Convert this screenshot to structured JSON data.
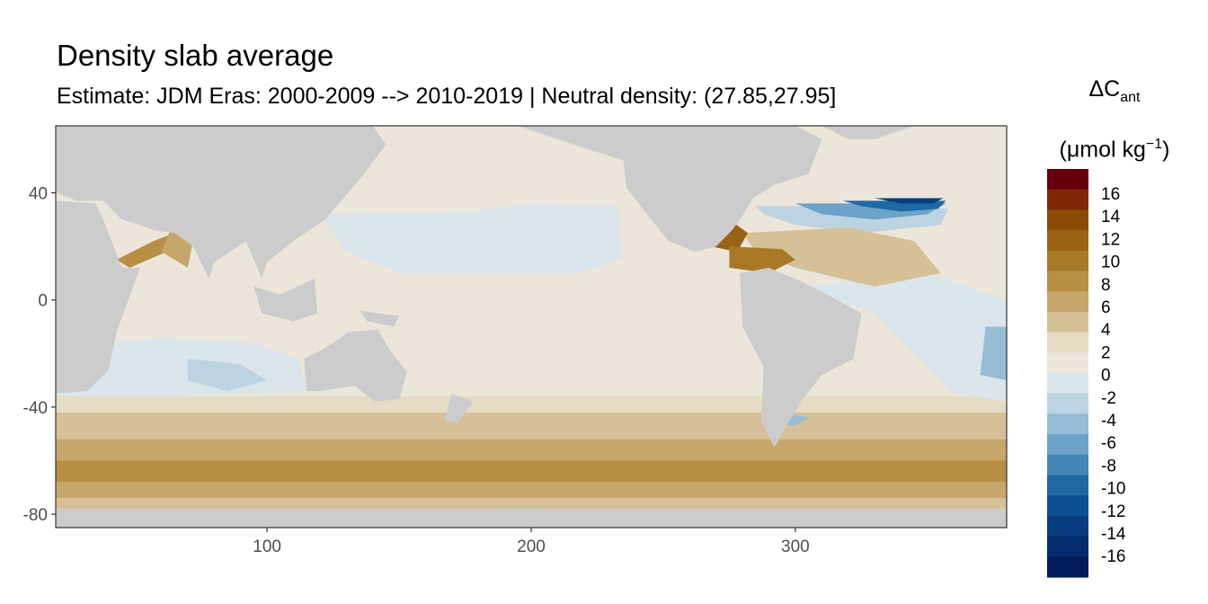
{
  "chart_data": {
    "type": "heatmap",
    "title": "Density slab average",
    "subtitle": "Estimate: JDM Eras: 2000-2009 --> 2010-2019 | Neutral density: (27.85,27.95]",
    "legend": {
      "title": "ΔC",
      "title_subscript": "ant",
      "unit_prefix": "(μmol kg",
      "unit_superscript": "−1",
      "unit_suffix": ")",
      "placement": "right",
      "labels": [
        "16",
        "14",
        "12",
        "10",
        "8",
        "6",
        "4",
        "2",
        "0",
        "-2",
        "-4",
        "-6",
        "-8",
        "-10",
        "-12",
        "-14",
        "-16"
      ],
      "colors": [
        "#67000d",
        "#7f2704",
        "#8c4a07",
        "#9a6314",
        "#a87a27",
        "#b88f45",
        "#c7a66a",
        "#d6c097",
        "#e6dcc4",
        "#ece6da",
        "#dbe5ec",
        "#bcd3e2",
        "#96bcd6",
        "#6da3c8",
        "#4586b8",
        "#1f68a6",
        "#0b4f93",
        "#073c7f",
        "#042c6e",
        "#021b5c"
      ]
    },
    "x_ticks": [
      "100",
      "200",
      "300"
    ],
    "y_ticks": [
      "40",
      "0",
      "-40",
      "-80"
    ],
    "xlim": [
      20,
      380
    ],
    "ylim": [
      -85,
      65
    ],
    "grid": true,
    "land_color": "#cccccc",
    "background_fill": "#ece6da"
  }
}
